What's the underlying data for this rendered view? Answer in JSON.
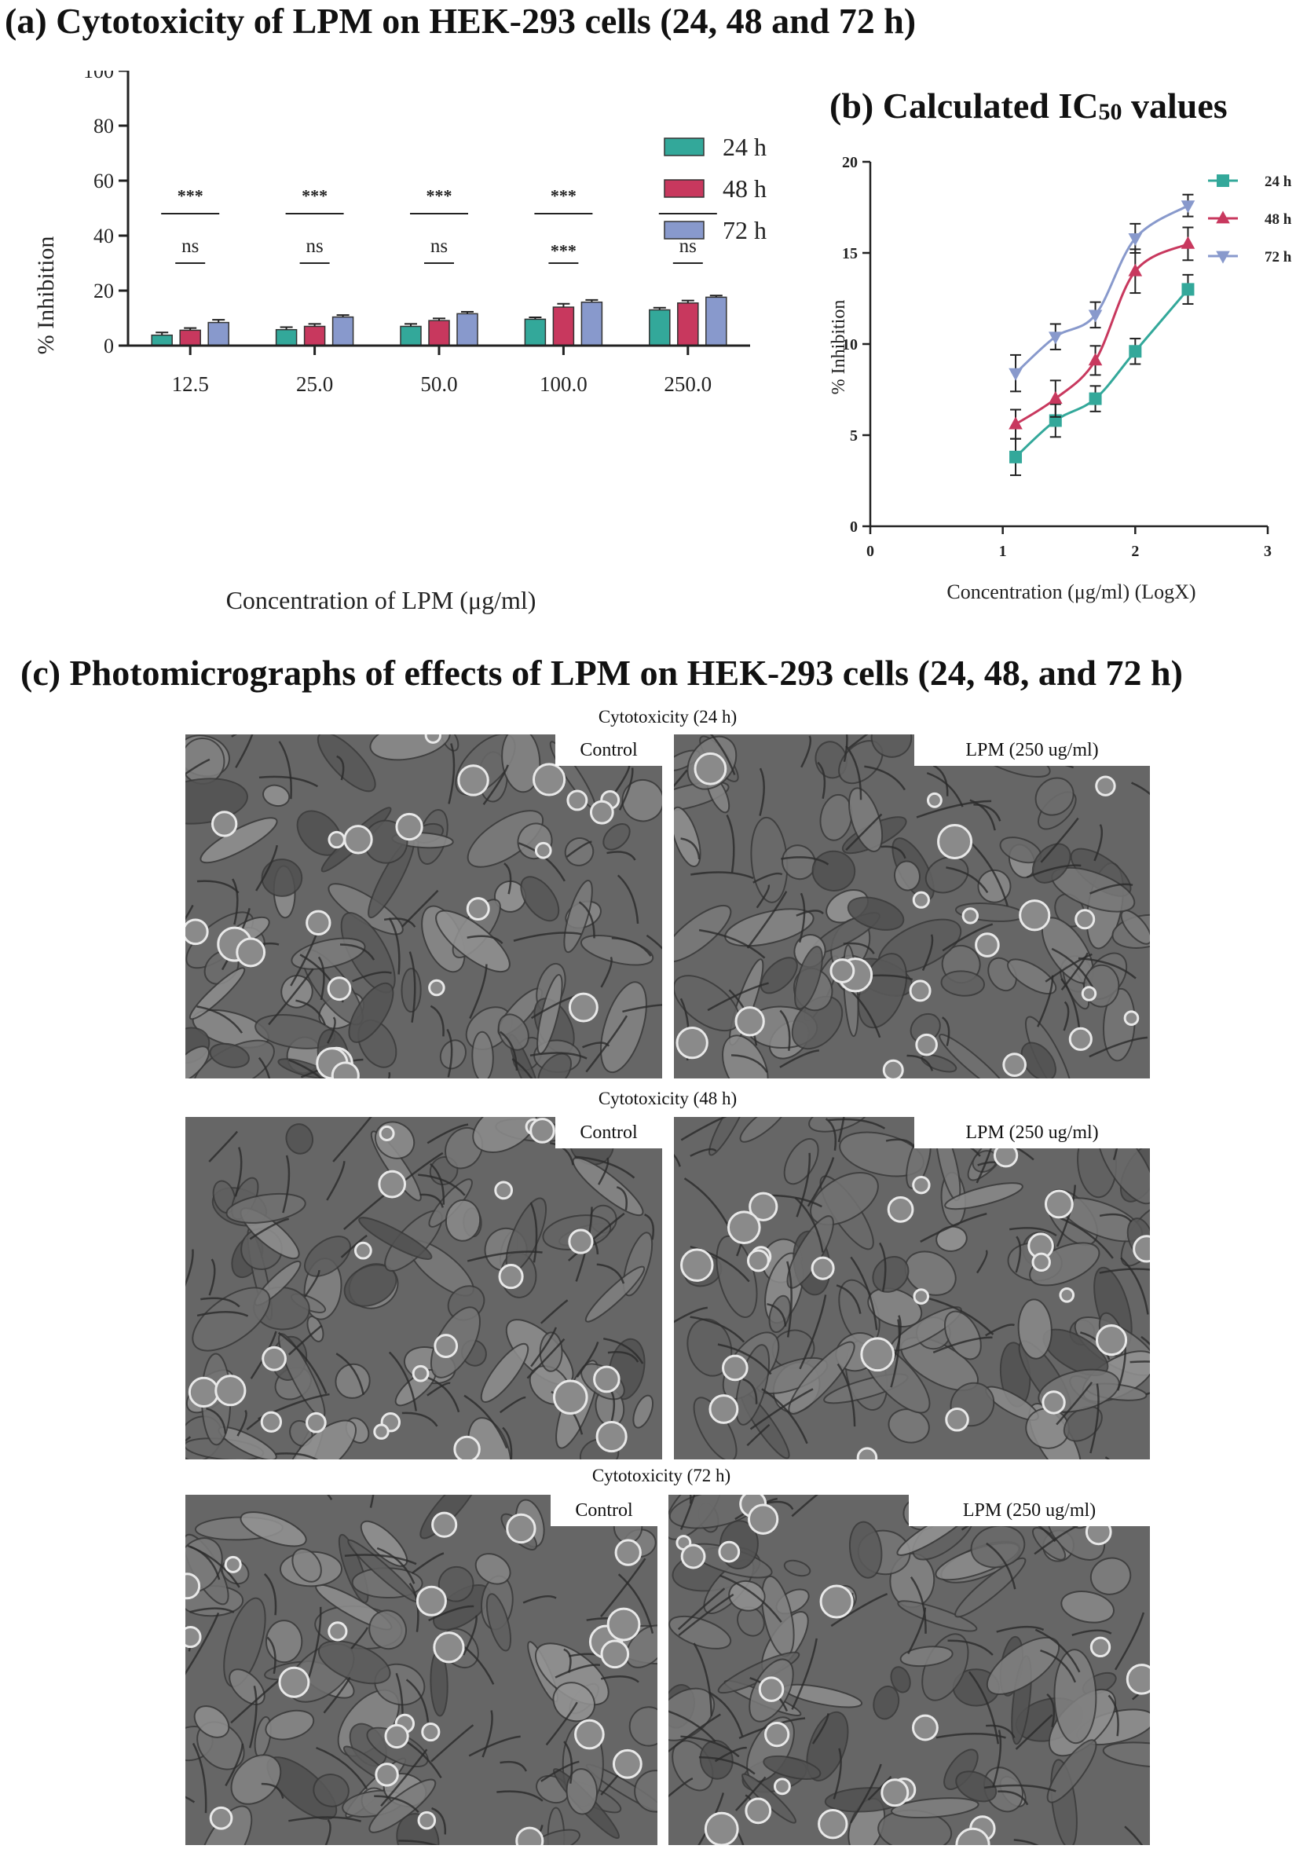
{
  "chart_data": [
    {
      "panel": "a",
      "type": "bar",
      "title": "(a) Cytotoxicity of LPM on HEK-293 cells (24, 48 and 72 h)",
      "xlabel": "Concentration of LPM (μg/ml)",
      "ylabel": "% Inhibition",
      "ylim": [
        0,
        100
      ],
      "yticks": [
        0,
        20,
        40,
        60,
        80,
        100
      ],
      "categories": [
        "12.5",
        "25.0",
        "50.0",
        "100.0",
        "250.0"
      ],
      "legend_position": "top-right",
      "series": [
        {
          "name": "24 h",
          "color": "#33a89a",
          "values": [
            3.8,
            5.8,
            7.0,
            9.6,
            13.0
          ],
          "errors": [
            1.0,
            0.9,
            0.9,
            0.7,
            0.8
          ]
        },
        {
          "name": "48 h",
          "color": "#c8385e",
          "values": [
            5.6,
            7.0,
            9.1,
            14.0,
            15.5
          ],
          "errors": [
            0.8,
            0.9,
            0.8,
            1.2,
            0.9
          ]
        },
        {
          "name": "72 h",
          "color": "#8899cc",
          "values": [
            8.4,
            10.4,
            11.6,
            15.8,
            17.6
          ],
          "errors": [
            1.0,
            0.7,
            0.7,
            0.8,
            0.6
          ]
        }
      ],
      "significance": [
        {
          "upper": "***",
          "lower": "ns"
        },
        {
          "upper": "***",
          "lower": "ns"
        },
        {
          "upper": "***",
          "lower": "ns"
        },
        {
          "upper": "***",
          "lower": "***"
        },
        {
          "upper": "***",
          "lower": "ns"
        }
      ]
    },
    {
      "panel": "b",
      "type": "line",
      "title": "(b) Calculated IC50 values",
      "title_main": "(b) Calculated IC",
      "title_sub": "50",
      "title_end": " values",
      "xlabel": "Concentration (μg/ml) (LogX)",
      "ylabel": "% Inhibition",
      "xlim": [
        0,
        3
      ],
      "ylim": [
        0,
        20
      ],
      "xticks": [
        0,
        1,
        2,
        3
      ],
      "yticks": [
        0,
        5,
        10,
        15,
        20
      ],
      "x": [
        1.097,
        1.398,
        1.699,
        2.0,
        2.398
      ],
      "legend_position": "top-right",
      "series": [
        {
          "name": "24 h",
          "color": "#33a89a",
          "marker": "square",
          "values": [
            3.8,
            5.8,
            7.0,
            9.6,
            13.0
          ],
          "errors": [
            1.0,
            0.9,
            0.7,
            0.7,
            0.8
          ]
        },
        {
          "name": "48 h",
          "color": "#c8385e",
          "marker": "triangle-up",
          "values": [
            5.6,
            7.0,
            9.1,
            14.0,
            15.5
          ],
          "errors": [
            0.8,
            1.0,
            0.8,
            1.2,
            0.9
          ]
        },
        {
          "name": "72 h",
          "color": "#8899cc",
          "marker": "triangle-down",
          "values": [
            8.4,
            10.4,
            11.6,
            15.8,
            17.6
          ],
          "errors": [
            1.0,
            0.7,
            0.7,
            0.8,
            0.6
          ]
        }
      ]
    }
  ],
  "micrographs": {
    "title": "(c) Photomicrographs of effects of LPM on HEK-293 cells (24, 48, and 72 h)",
    "rows": [
      {
        "caption": "Cytotoxicity (24 h)",
        "control_label": "Control",
        "treated_label": "LPM (250 ug/ml)"
      },
      {
        "caption": "Cytotoxicity (48 h)",
        "control_label": "Control",
        "treated_label": "LPM (250 ug/ml)"
      },
      {
        "caption": "Cytotoxicity (72 h)",
        "control_label": "Control",
        "treated_label": "LPM (250 ug/ml)"
      }
    ]
  }
}
